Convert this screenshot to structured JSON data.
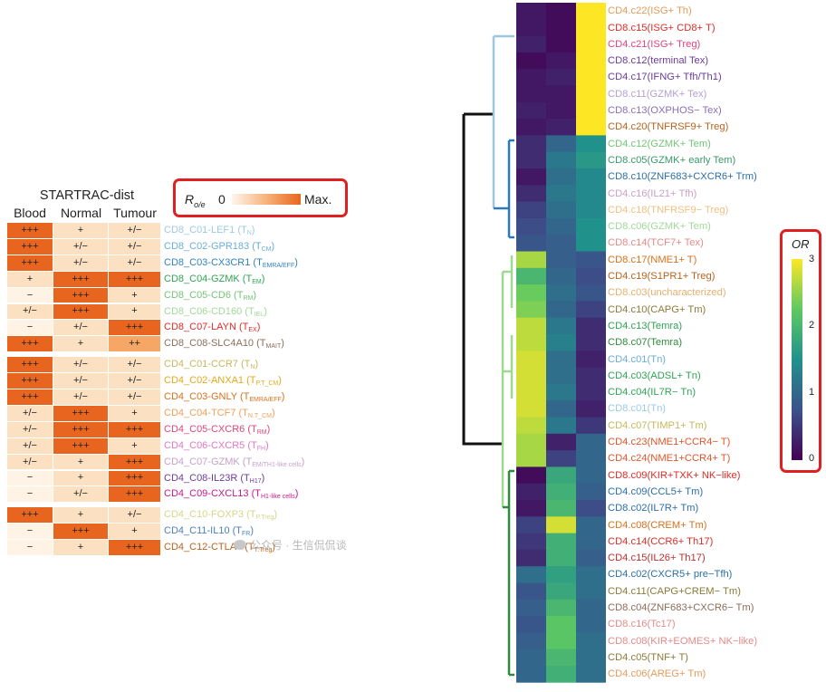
{
  "chart_data": [
    {
      "type": "table",
      "title": "STARTRAC-dist",
      "columns": [
        "Blood",
        "Normal",
        "Tumour"
      ],
      "legend": {
        "label_main": "R",
        "label_sub": "o/e",
        "min": "0",
        "max": "Max."
      },
      "row_groups": [
        [
          {
            "id": "CD8_C01-LEF1",
            "sub": "N",
            "color": "#9ecae1",
            "values": [
              "+++",
              "+",
              "+/−"
            ],
            "levels": [
              3,
              1,
              1
            ]
          },
          {
            "id": "CD8_C02-GPR183",
            "sub": "CM",
            "color": "#6baed6",
            "values": [
              "+++",
              "+/−",
              "+/−"
            ],
            "levels": [
              3,
              1,
              1
            ]
          },
          {
            "id": "CD8_C03-CX3CR1",
            "sub": "EMRA/EFF",
            "color": "#3182bd",
            "values": [
              "+++",
              "+/−",
              "+/−"
            ],
            "levels": [
              3,
              1,
              1
            ]
          },
          {
            "id": "CD8_C04-GZMK",
            "sub": "EM",
            "color": "#31a354",
            "values": [
              "+",
              "+++",
              "+++"
            ],
            "levels": [
              1,
              3,
              3
            ]
          },
          {
            "id": "CD8_C05-CD6",
            "sub": "RM",
            "color": "#74c476",
            "values": [
              "−",
              "+++",
              "+"
            ],
            "levels": [
              0,
              3,
              1
            ]
          },
          {
            "id": "CD8_C06-CD160",
            "sub": "IEL",
            "color": "#a1d99b",
            "values": [
              "+/−",
              "+++",
              "+"
            ],
            "levels": [
              1,
              3,
              1
            ]
          },
          {
            "id": "CD8_C07-LAYN",
            "sub": "EX",
            "color": "#de2d26",
            "values": [
              "−",
              "+/−",
              "+++"
            ],
            "levels": [
              0,
              1,
              3
            ]
          },
          {
            "id": "CD8_C08-SLC4A10",
            "sub": "MAIT",
            "color": "#8c6d5a",
            "values": [
              "+++",
              "+",
              "++"
            ],
            "levels": [
              3,
              1,
              2
            ]
          }
        ],
        [
          {
            "id": "CD4_C01-CCR7",
            "sub": "N",
            "color": "#c6b85c",
            "values": [
              "+++",
              "+/−",
              "+/−"
            ],
            "levels": [
              3,
              1,
              1
            ]
          },
          {
            "id": "CD4_C02-ANXA1",
            "sub": "P.T_CM",
            "color": "#e6a817",
            "values": [
              "+++",
              "+/−",
              "+/−"
            ],
            "levels": [
              3,
              1,
              1
            ]
          },
          {
            "id": "CD4_C03-GNLY",
            "sub": "EMRA/EFF",
            "color": "#d9711b",
            "values": [
              "+++",
              "+/−",
              "+/−"
            ],
            "levels": [
              3,
              1,
              1
            ]
          },
          {
            "id": "CD4_C04-TCF7",
            "sub": "N.T_CM",
            "color": "#f0a05a",
            "values": [
              "+/−",
              "+++",
              "+"
            ],
            "levels": [
              1,
              3,
              1
            ]
          },
          {
            "id": "CD4_C05-CXCR6",
            "sub": "RM",
            "color": "#e0457b",
            "values": [
              "+/−",
              "+++",
              "+++"
            ],
            "levels": [
              1,
              3,
              3
            ]
          },
          {
            "id": "CD4_C06-CXCR5",
            "sub": "FH",
            "color": "#e377c2",
            "values": [
              "+/−",
              "+++",
              "+"
            ],
            "levels": [
              1,
              3,
              1
            ]
          },
          {
            "id": "CD4_C07-GZMK",
            "sub": "EM/TH1-like cells",
            "color": "#c9a0c9",
            "values": [
              "+/−",
              "+",
              "+++"
            ],
            "levels": [
              1,
              1,
              3
            ]
          },
          {
            "id": "CD4_C08-IL23R",
            "sub": "H17",
            "color": "#6a3d9a",
            "values": [
              "−",
              "+",
              "+++"
            ],
            "levels": [
              0,
              1,
              3
            ]
          },
          {
            "id": "CD4_C09-CXCL13",
            "sub": "H1-like cells",
            "color": "#c51b8a",
            "values": [
              "−",
              "+/−",
              "+++"
            ],
            "levels": [
              0,
              1,
              3
            ]
          }
        ],
        [
          {
            "id": "CD4_C10-FOXP3",
            "sub": "P.Treg",
            "color": "#d6d68a",
            "values": [
              "+++",
              "+",
              "+/−"
            ],
            "levels": [
              3,
              1,
              1
            ]
          },
          {
            "id": "CD4_C11-IL10",
            "sub": "FR",
            "color": "#4a7fc1",
            "values": [
              "−",
              "+++",
              "+"
            ],
            "levels": [
              0,
              3,
              1
            ]
          },
          {
            "id": "CD4_C12-CTLA4",
            "sub": "T.Treg",
            "color": "#b8631d",
            "values": [
              "−",
              "+",
              "+++"
            ],
            "levels": [
              0,
              1,
              3
            ]
          }
        ]
      ]
    },
    {
      "type": "heatmap",
      "legend": {
        "title": "OR",
        "min": 0,
        "max": 3,
        "ticks": [
          "3",
          "2",
          "1",
          "0"
        ]
      },
      "rows": [
        {
          "label": "CD4.c22(ISG+ Th)",
          "color": "#e69a5a",
          "values": [
            0.2,
            0.1,
            3.0
          ]
        },
        {
          "label": "CD8.c15(ISG+ CD8+ T)",
          "color": "#de2d26",
          "values": [
            0.2,
            0.1,
            3.0
          ]
        },
        {
          "label": "CD4.c21(ISG+ Treg)",
          "color": "#e0457b",
          "values": [
            0.3,
            0.1,
            3.0
          ]
        },
        {
          "label": "CD8.c12(terminal Tex)",
          "color": "#6a3d9a",
          "values": [
            0.1,
            0.2,
            3.0
          ]
        },
        {
          "label": "CD4.c17(IFNG+ Tfh/Th1)",
          "color": "#6a3d9a",
          "values": [
            0.2,
            0.3,
            3.0
          ]
        },
        {
          "label": "CD8.c11(GZMK+ Tex)",
          "color": "#b3a0d0",
          "values": [
            0.2,
            0.2,
            3.0
          ]
        },
        {
          "label": "CD8.c13(OXPHOS− Tex)",
          "color": "#8b6fb8",
          "values": [
            0.3,
            0.2,
            3.0
          ]
        },
        {
          "label": "CD4.c20(TNFRSF9+ Treg)",
          "color": "#b8631d",
          "values": [
            0.2,
            0.3,
            3.0
          ]
        },
        {
          "label": "CD4.c12(GZMK+ Tem)",
          "color": "#74c476",
          "values": [
            0.4,
            1.0,
            1.5
          ]
        },
        {
          "label": "CD8.c05(GZMK+ early Tem)",
          "color": "#3a9a6a",
          "values": [
            0.4,
            1.2,
            1.6
          ]
        },
        {
          "label": "CD8.c10(ZNF683+CXCR6+ Trm)",
          "color": "#2c6fa8",
          "values": [
            0.2,
            1.1,
            1.4
          ]
        },
        {
          "label": "CD4.c16(IL21+ Tfh)",
          "color": "#c9a0c9",
          "values": [
            0.4,
            1.2,
            1.4
          ]
        },
        {
          "label": "CD4.c18(TNFRSF9− Treg)",
          "color": "#f0c080",
          "values": [
            0.6,
            1.1,
            1.4
          ]
        },
        {
          "label": "CD8.c06(GZMK+ Tem)",
          "color": "#a1d99b",
          "values": [
            0.7,
            1.0,
            1.5
          ]
        },
        {
          "label": "CD8.c14(TCF7+ Tex)",
          "color": "#e58a8a",
          "values": [
            0.8,
            0.9,
            1.5
          ]
        },
        {
          "label": "CD8.c17(NME1+ T)",
          "color": "#d9711b",
          "values": [
            2.6,
            0.9,
            0.8
          ]
        },
        {
          "label": "CD4.c19(S1PR1+ Treg)",
          "color": "#b8631d",
          "values": [
            2.0,
            1.0,
            0.7
          ]
        },
        {
          "label": "CD8.c03(uncharacterized)",
          "color": "#e6b070",
          "values": [
            2.3,
            1.1,
            0.8
          ]
        },
        {
          "label": "CD4.c10(CAPG+ Tm)",
          "color": "#8c7a3a",
          "values": [
            2.4,
            1.0,
            0.6
          ]
        },
        {
          "label": "CD4.c13(Temra)",
          "color": "#31a354",
          "values": [
            2.7,
            1.2,
            0.4
          ]
        },
        {
          "label": "CD8.c07(Temra)",
          "color": "#2e8b3a",
          "values": [
            2.7,
            1.3,
            0.4
          ]
        },
        {
          "label": "CD4.c01(Tn)",
          "color": "#6baed6",
          "values": [
            2.8,
            1.1,
            0.3
          ]
        },
        {
          "label": "CD4.c03(ADSL+ Tn)",
          "color": "#31a354",
          "values": [
            2.8,
            1.1,
            0.4
          ]
        },
        {
          "label": "CD4.c04(IL7R− Tn)",
          "color": "#31a354",
          "values": [
            2.8,
            1.2,
            0.4
          ]
        },
        {
          "label": "CD8.c01(Tn)",
          "color": "#9ecae1",
          "values": [
            2.8,
            1.0,
            0.3
          ]
        },
        {
          "label": "CD4.c07(TIMP1+ Tm)",
          "color": "#c6b85c",
          "values": [
            2.7,
            1.2,
            0.5
          ]
        },
        {
          "label": "CD4.c23(NME1+CCR4− T)",
          "color": "#e0562a",
          "values": [
            2.6,
            0.3,
            1.0
          ]
        },
        {
          "label": "CD4.c24(NME1+CCR4+ T)",
          "color": "#e0562a",
          "values": [
            2.6,
            0.6,
            1.0
          ]
        },
        {
          "label": "CD8.c09(KIR+TXK+ NK−like)",
          "color": "#de2d26",
          "values": [
            0.1,
            1.8,
            1.0
          ]
        },
        {
          "label": "CD4.c09(CCL5+ Tm)",
          "color": "#2c6fa8",
          "values": [
            0.3,
            1.9,
            0.9
          ]
        },
        {
          "label": "CD8.c02(IL7R+ Tm)",
          "color": "#2c6fa8",
          "values": [
            0.2,
            2.0,
            0.7
          ]
        },
        {
          "label": "CD4.c08(CREM+ Tm)",
          "color": "#d9711b",
          "values": [
            0.6,
            2.8,
            1.0
          ]
        },
        {
          "label": "CD4.c14(CCR6+ Th17)",
          "color": "#de2d26",
          "values": [
            0.5,
            1.9,
            1.0
          ]
        },
        {
          "label": "CD4.c15(IL26+ Th17)",
          "color": "#c03030",
          "values": [
            0.4,
            1.9,
            0.9
          ]
        },
        {
          "label": "CD4.c02(CXCR5+ pre−Tfh)",
          "color": "#2c6fa8",
          "values": [
            1.1,
            1.7,
            1.1
          ]
        },
        {
          "label": "CD4.c11(CAPG+CREM− Tm)",
          "color": "#8c7a3a",
          "values": [
            0.8,
            1.8,
            1.1
          ]
        },
        {
          "label": "CD8.c04(ZNF683+CXCR6− Tm)",
          "color": "#8c6d5a",
          "values": [
            0.9,
            2.0,
            1.0
          ]
        },
        {
          "label": "CD8.c16(Tc17)",
          "color": "#e58a8a",
          "values": [
            0.8,
            2.2,
            1.0
          ]
        },
        {
          "label": "CD8.c08(KIR+EOMES+ NK−like)",
          "color": "#e58a8a",
          "values": [
            0.9,
            2.2,
            1.1
          ]
        },
        {
          "label": "CD4.c05(TNF+ T)",
          "color": "#8c7a3a",
          "values": [
            1.0,
            2.0,
            1.1
          ]
        },
        {
          "label": "CD4.c06(AREG+ Tm)",
          "color": "#e69a5a",
          "values": [
            1.0,
            1.9,
            1.1
          ]
        }
      ]
    }
  ],
  "watermark": "公众号 · 生信侃侃谈"
}
